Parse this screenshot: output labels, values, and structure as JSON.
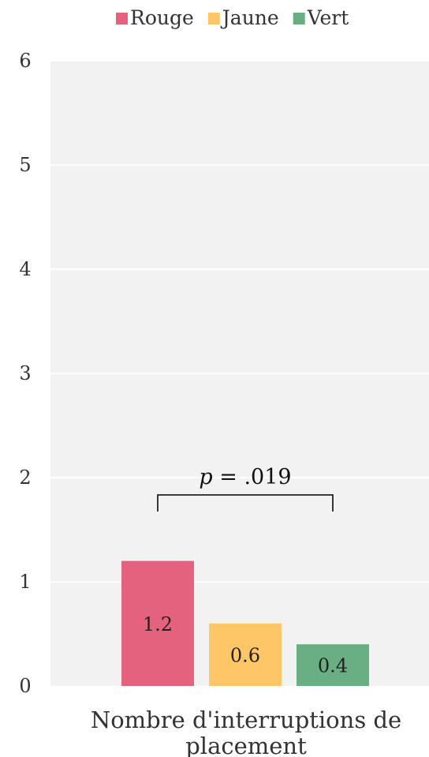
{
  "chart_data": {
    "type": "bar",
    "categories": [
      "Nombre d'interruptions de placement"
    ],
    "xlabel_lines": [
      "Nombre d'interruptions de",
      "placement"
    ],
    "series": [
      {
        "name": "Rouge",
        "color": "#e5627f",
        "values": [
          1.2
        ],
        "label": "1.2"
      },
      {
        "name": "Jaune",
        "color": "#fec667",
        "values": [
          0.6
        ],
        "label": "0.6"
      },
      {
        "name": "Vert",
        "color": "#6aae83",
        "values": [
          0.4
        ],
        "label": "0.4"
      }
    ],
    "ylim": [
      0,
      6
    ],
    "yticks": [
      "0",
      "1",
      "2",
      "3",
      "4",
      "5",
      "6"
    ],
    "grid": true,
    "legend_position": "top",
    "annotation": {
      "p_symbol": "p",
      "text": " = .019",
      "from_series": 0,
      "to_series": 2
    }
  }
}
